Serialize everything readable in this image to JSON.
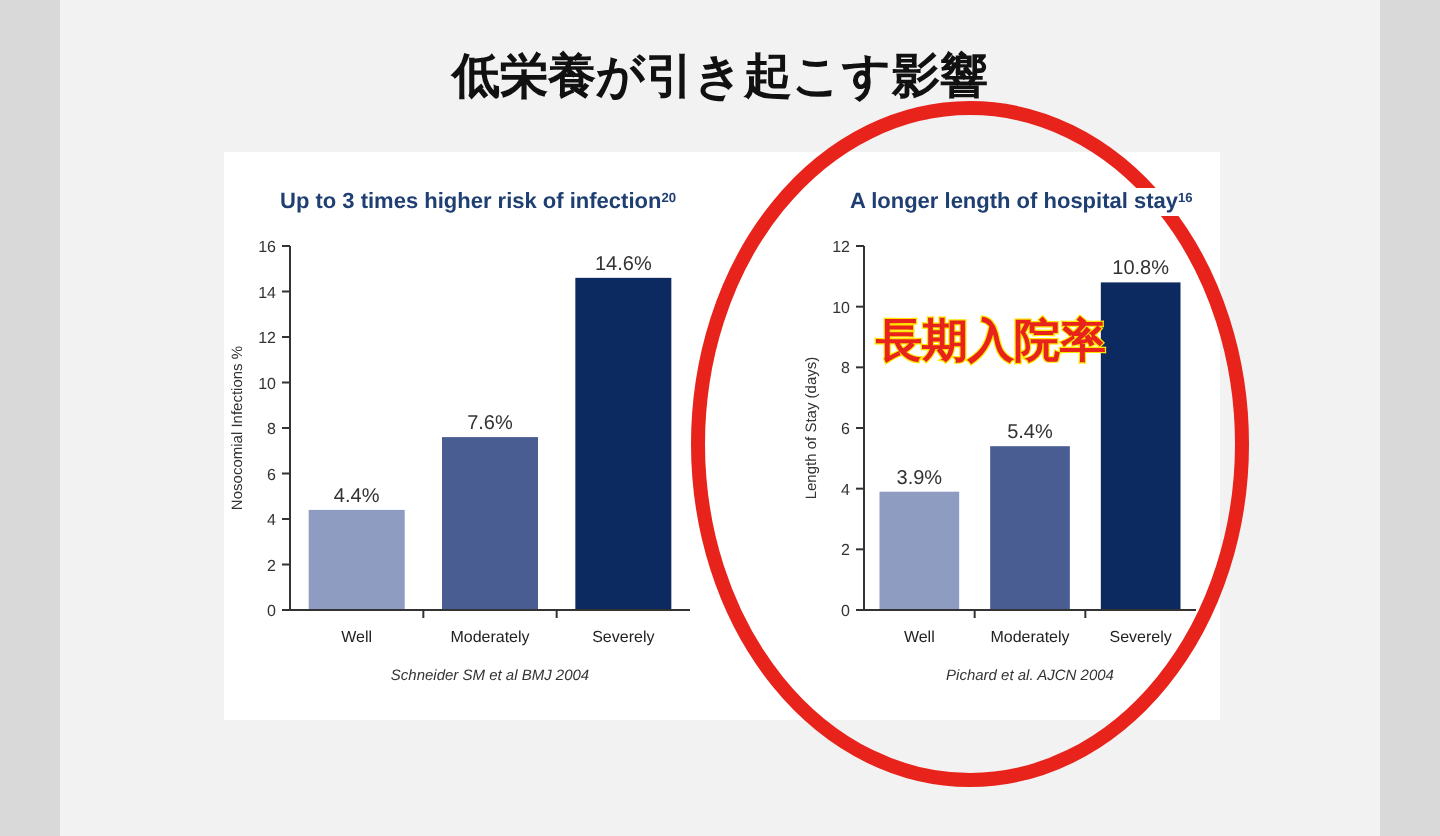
{
  "chart_data": [
    {
      "type": "other",
      "title": "低栄養が引き起こす影響"
    },
    {
      "type": "bar",
      "title": "Up to 3 times higher risk of infection$^{20}$",
      "ylabel": "Nosocomial Infections %",
      "categories": [
        "Well",
        "Moderately",
        "Severely"
      ],
      "values": [
        4.4,
        7.6,
        14.6
      ],
      "value_labels": [
        "4.4%",
        "7.6%",
        "14.6%"
      ],
      "colors": [
        "#8e9cc2",
        "#4a5d92",
        "#0c2a60"
      ],
      "ylim": [
        0,
        16
      ],
      "yticks": [
        0,
        2,
        4,
        6,
        8,
        10,
        12,
        14,
        16
      ],
      "annotations": [
        "Schneider SM et al BMJ 2004"
      ]
    },
    {
      "type": "bar",
      "title": "A longer length of hospital stay$^{16}$",
      "ylabel": "Length of Stay (days)",
      "categories": [
        "Well",
        "Moderately",
        "Severely"
      ],
      "values": [
        3.9,
        5.4,
        10.8
      ],
      "value_labels": [
        "3.9%",
        "5.4%",
        "10.8%"
      ],
      "colors": [
        "#8e9cc2",
        "#4a5d92",
        "#0c2a60"
      ],
      "ylim": [
        0,
        12
      ],
      "yticks": [
        0,
        2,
        4,
        6,
        8,
        10,
        12
      ],
      "annotations": [
        "Pichard et al.  AJCN 2004",
        "長期入院率"
      ]
    }
  ]
}
